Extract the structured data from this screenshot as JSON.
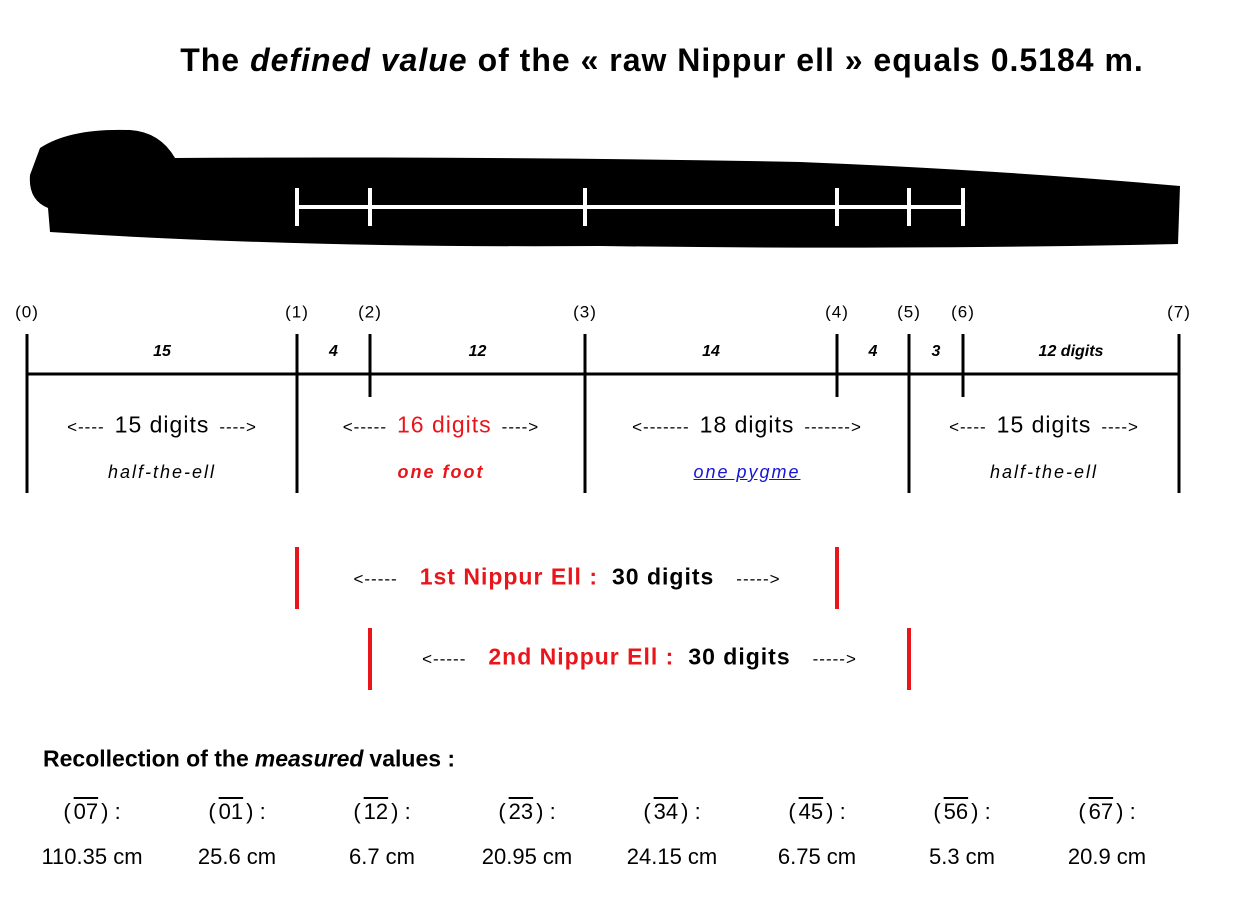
{
  "title": {
    "before": "The",
    "emphasis": "defined value",
    "after": "of the « raw Nippur ell » equals 0.5184 m."
  },
  "points": [
    "(0)",
    "(1)",
    "(2)",
    "(3)",
    "(4)",
    "(5)",
    "(6)",
    "(7)"
  ],
  "segments": [
    "15",
    "4",
    "12",
    "14",
    "4",
    "3",
    "12 digits"
  ],
  "spans": [
    {
      "left": "<----",
      "text": "15 digits",
      "right": "---->",
      "note": "half-the-ell"
    },
    {
      "left": "<-----",
      "text": "16 digits",
      "right": "---->",
      "note": "one foot"
    },
    {
      "left": "<-------",
      "text": "18 digits",
      "right": "------->",
      "note": "one pygme"
    },
    {
      "left": "<----",
      "text": "15 digits",
      "right": "---->",
      "note": "half-the-ell"
    }
  ],
  "ells": [
    {
      "left": "<-----",
      "name": "1st Nippur Ell :",
      "value": "30 digits",
      "right": "----->"
    },
    {
      "left": "<-----",
      "name": "2nd Nippur Ell :",
      "value": "30 digits",
      "right": "----->"
    }
  ],
  "measurements": {
    "heading": {
      "before": "Recollection of the",
      "emphasis": "measured",
      "after": "values :"
    },
    "items": [
      {
        "open": "(",
        "segment": "07",
        "close": ") :",
        "value": "110.35 cm"
      },
      {
        "open": "(",
        "segment": "01",
        "close": ") :",
        "value": "25.6 cm"
      },
      {
        "open": "(",
        "segment": "12",
        "close": ") :",
        "value": "6.7 cm"
      },
      {
        "open": "(",
        "segment": "23",
        "close": ") :",
        "value": "20.95 cm"
      },
      {
        "open": "(",
        "segment": "34",
        "close": ") :",
        "value": "24.15 cm"
      },
      {
        "open": "(",
        "segment": "45",
        "close": ") :",
        "value": "6.75 cm"
      },
      {
        "open": "(",
        "segment": "56",
        "close": ") :",
        "value": "5.3 cm"
      },
      {
        "open": "(",
        "segment": "67",
        "close": ") :",
        "value": "20.9 cm"
      }
    ]
  }
}
